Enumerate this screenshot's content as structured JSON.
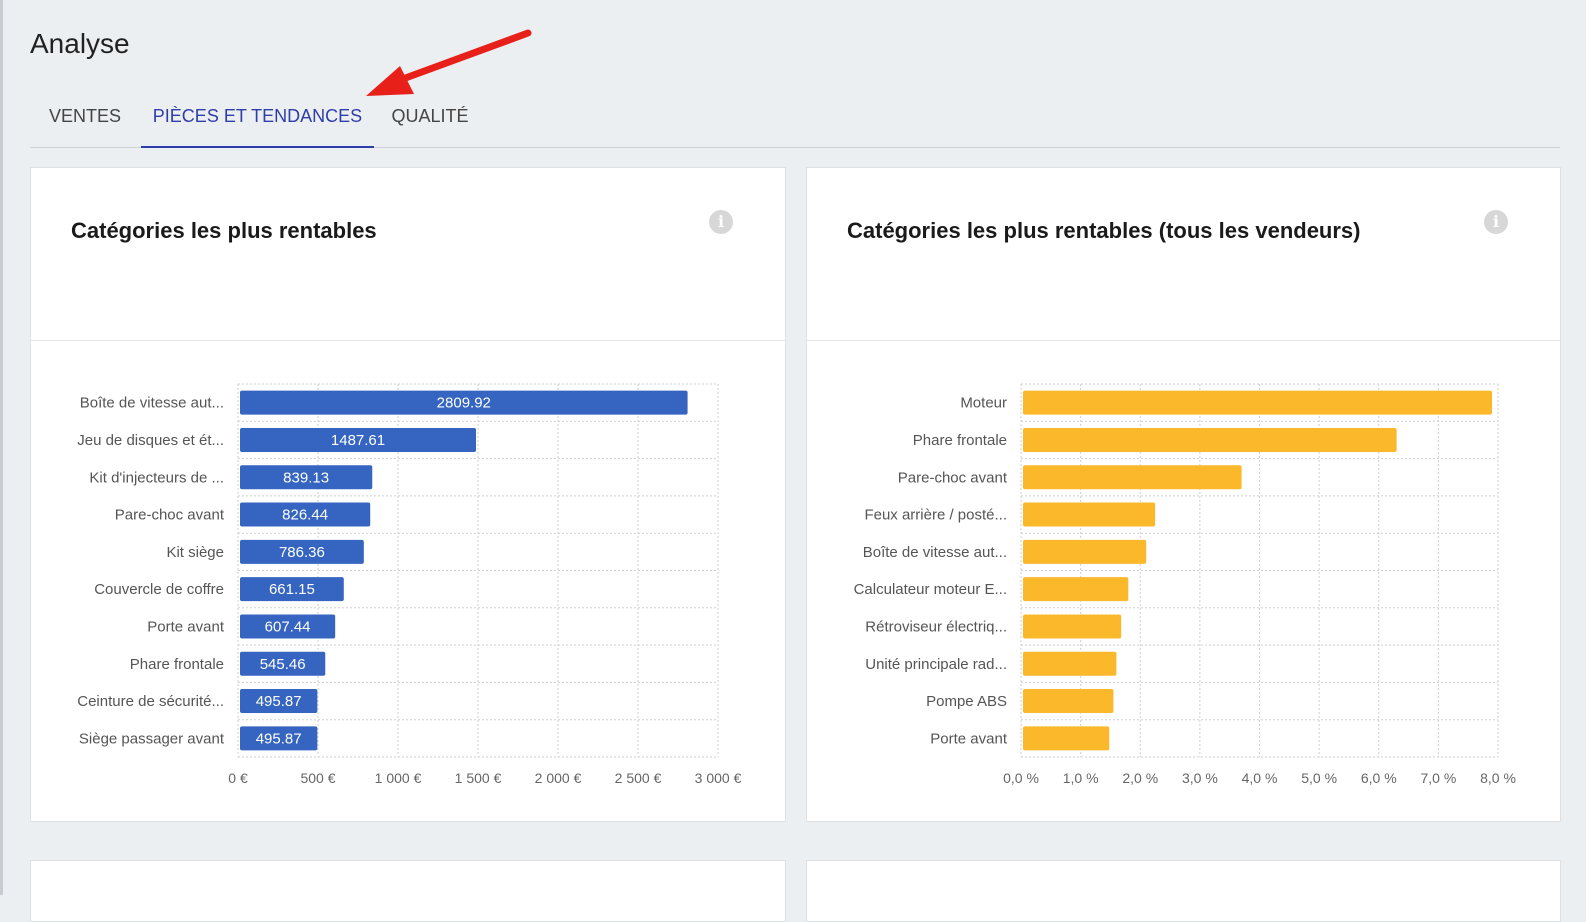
{
  "page": {
    "title": "Analyse"
  },
  "tabs": [
    {
      "label": "VENTES",
      "active": false
    },
    {
      "label": "PIÈCES ET TENDANCES",
      "active": true
    },
    {
      "label": "QUALITÉ",
      "active": false
    }
  ],
  "colors": {
    "accent": "#2f3da8",
    "bar_blue": "#3565c0",
    "bar_yellow": "#fbb82b",
    "annotation_arrow": "#e8201a"
  },
  "cards": [
    {
      "title": "Catégories les plus rentables",
      "info_icon": "info-icon"
    },
    {
      "title": "Catégories les plus rentables (tous les vendeurs)",
      "info_icon": "info-icon"
    }
  ],
  "chart_data": [
    {
      "type": "bar",
      "orientation": "horizontal",
      "categories": [
        "Boîte de vitesse aut...",
        "Jeu de disques et ét...",
        "Kit d'injecteurs de ...",
        "Pare-choc avant",
        "Kit siège",
        "Couvercle de coffre",
        "Porte avant",
        "Phare frontale",
        "Ceinture de sécurité...",
        "Siège passager avant"
      ],
      "values": [
        2809.92,
        1487.61,
        839.13,
        826.44,
        786.36,
        661.15,
        607.44,
        545.46,
        495.87,
        495.87
      ],
      "data_labels": [
        "2809.92",
        "1487.61",
        "839.13",
        "826.44",
        "786.36",
        "661.15",
        "607.44",
        "545.46",
        "495.87",
        "495.87"
      ],
      "xlim": [
        0,
        3000
      ],
      "xticks": [
        0,
        500,
        1000,
        1500,
        2000,
        2500,
        3000
      ],
      "xtick_labels": [
        "0 €",
        "500 €",
        "1 000 €",
        "1 500 €",
        "2 000 €",
        "2 500 €",
        "3 000 €"
      ],
      "grid": true,
      "color": "#3565c0"
    },
    {
      "type": "bar",
      "orientation": "horizontal",
      "categories": [
        "Moteur",
        "Phare frontale",
        "Pare-choc avant",
        "Feux arrière / posté...",
        "Boîte de vitesse aut...",
        "Calculateur moteur E...",
        "Rétroviseur électriq...",
        "Unité principale rad...",
        "Pompe ABS",
        "Porte avant"
      ],
      "values": [
        7.9,
        6.3,
        3.7,
        2.25,
        2.1,
        1.8,
        1.68,
        1.6,
        1.55,
        1.48
      ],
      "xlim": [
        0,
        8
      ],
      "xticks": [
        0,
        1,
        2,
        3,
        4,
        5,
        6,
        7,
        8
      ],
      "xtick_labels": [
        "0,0 %",
        "1,0 %",
        "2,0 %",
        "3,0 %",
        "4,0 %",
        "5,0 %",
        "6,0 %",
        "7,0 %",
        "8,0 %"
      ],
      "grid": true,
      "color": "#fbb82b"
    }
  ]
}
